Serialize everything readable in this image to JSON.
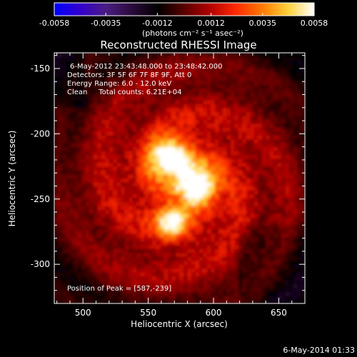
{
  "colorbar": {
    "ticks": [
      "-0.0058",
      "-0.0035",
      "-0.0012",
      "0.0012",
      "0.0035",
      "0.0058"
    ],
    "unit_label": "(photons cm⁻² s⁻¹ asec⁻²)",
    "range": [
      -0.0058,
      0.0058
    ],
    "colors": [
      "#0000ff",
      "#3300cc",
      "#4b1d82",
      "#2a0a3a",
      "#000000",
      "#5a0000",
      "#b30000",
      "#ff2a00",
      "#ff7a00",
      "#ffd23c",
      "#ffffff"
    ]
  },
  "chart_data": {
    "type": "heatmap",
    "title": "Reconstructed RHESSI Image",
    "xlabel": "Heliocentric X (arcsec)",
    "ylabel": "Heliocentric Y (arcsec)",
    "xlim": [
      478,
      670
    ],
    "ylim": [
      -330,
      -138
    ],
    "x_ticks": [
      "500",
      "550",
      "600",
      "650"
    ],
    "y_ticks": [
      "-150",
      "-200",
      "-250",
      "-300"
    ],
    "annotations": [
      "6-May-2012 23:43:48.000 to 23:48:42.000",
      "Detectors: 3F 5F 6F 7F 8F 9F, Att 0",
      "Energy Range: 6.0 - 12.0 keV",
      "Clean     Total counts: 6.21E+04"
    ],
    "peak_label": "Position of Peak = [587,-239]",
    "sources": [
      {
        "x": 567,
        "y": -218,
        "value": 0.0058
      },
      {
        "x": 587,
        "y": -239,
        "value": 0.0058
      },
      {
        "x": 568,
        "y": -267,
        "value": 0.0045
      }
    ]
  },
  "footer": {
    "timestamp": "6-May-2014 01:33"
  }
}
